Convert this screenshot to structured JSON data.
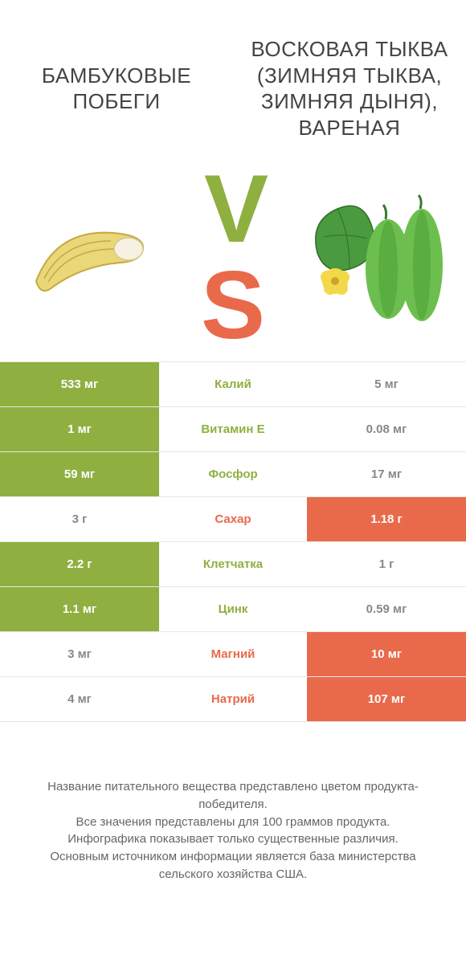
{
  "colors": {
    "green": "#8fb040",
    "orange": "#e96a4b",
    "text_gray": "#888888",
    "row_border": "#e7e7e7",
    "title_text": "#444444",
    "footer_text": "#666666",
    "bg": "#ffffff"
  },
  "left": {
    "title": "БАМБУКОВЫЕ ПОБЕГИ"
  },
  "right": {
    "title": "ВОСКОВАЯ ТЫКВА (ЗИМНЯЯ ТЫКВА, ЗИМНЯЯ ДЫНЯ), ВАРЕНАЯ"
  },
  "vs": {
    "v": "V",
    "s": "S"
  },
  "nutrients": [
    {
      "name": "Калий",
      "left": "533 мг",
      "right": "5 мг",
      "winner": "left"
    },
    {
      "name": "Витамин E",
      "left": "1 мг",
      "right": "0.08 мг",
      "winner": "left"
    },
    {
      "name": "Фосфор",
      "left": "59 мг",
      "right": "17 мг",
      "winner": "left"
    },
    {
      "name": "Сахар",
      "left": "3 г",
      "right": "1.18 г",
      "winner": "right"
    },
    {
      "name": "Клетчатка",
      "left": "2.2 г",
      "right": "1 г",
      "winner": "left"
    },
    {
      "name": "Цинк",
      "left": "1.1 мг",
      "right": "0.59 мг",
      "winner": "left"
    },
    {
      "name": "Магний",
      "left": "3 мг",
      "right": "10 мг",
      "winner": "right"
    },
    {
      "name": "Натрий",
      "left": "4 мг",
      "right": "107 мг",
      "winner": "right"
    }
  ],
  "footer": {
    "line1": "Название питательного вещества представлено цветом продукта-победителя.",
    "line2": "Все значения представлены для 100 граммов продукта.",
    "line3": "Инфографика показывает только существенные различия.",
    "line4": "Основным источником информации является база министерства сельского хозяйства США."
  }
}
